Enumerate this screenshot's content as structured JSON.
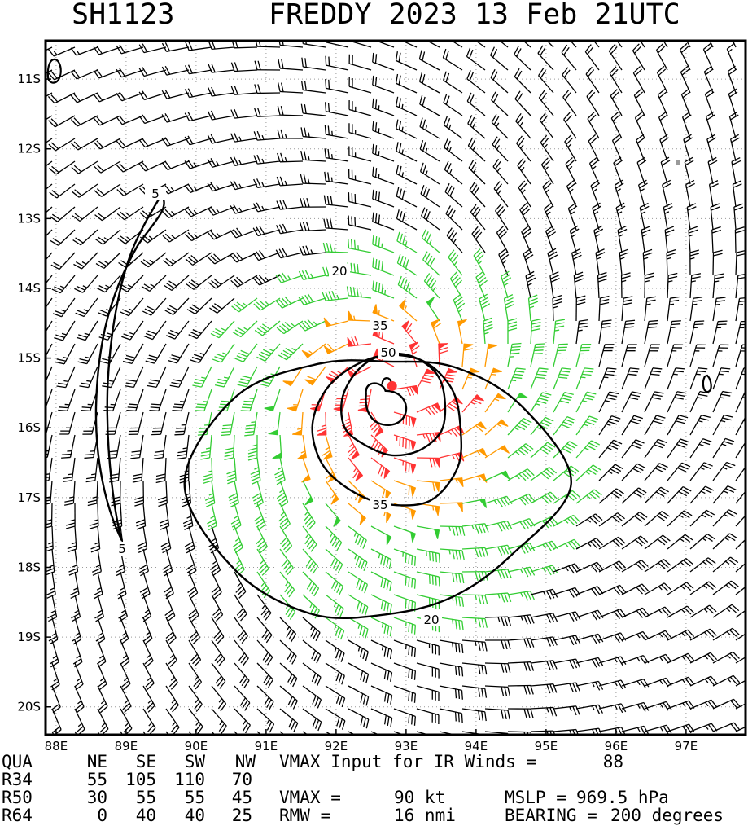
{
  "title": {
    "storm_id": "SH1123",
    "storm_info": "FREDDY 2023 13 Feb 21UTC"
  },
  "chart_data": {
    "type": "wind-barb-map",
    "xlabel": "",
    "ylabel": "",
    "x_ticks": [
      88,
      89,
      90,
      91,
      92,
      93,
      94,
      95,
      96,
      97
    ],
    "x_tick_labels": [
      "88E",
      "89E",
      "90E",
      "91E",
      "92E",
      "93E",
      "94E",
      "95E",
      "96E",
      "97E"
    ],
    "y_ticks": [
      -11,
      -12,
      -13,
      -14,
      -15,
      -16,
      -17,
      -18,
      -19,
      -20
    ],
    "y_tick_labels": [
      "11S",
      "12S",
      "13S",
      "14S",
      "15S",
      "16S",
      "17S",
      "18S",
      "19S",
      "20S"
    ],
    "xlim": [
      87.85,
      97.85
    ],
    "ylim": [
      -20.4,
      -10.45
    ],
    "grid": true,
    "center": {
      "lon": 92.8,
      "lat": -15.4
    },
    "storm_center_color": "#ff3333",
    "barb_colors": {
      "below_34": "#000000",
      "r34": "#33cc33",
      "r50": "#ff9900",
      "r64": "#ff3333"
    },
    "contour_levels": [
      5,
      20,
      35,
      50
    ],
    "contour_labels": [
      "5",
      "5",
      "20",
      "20",
      "35",
      "35",
      "50"
    ],
    "vmax_kt": 90
  },
  "footer": {
    "header_row": [
      "QUA",
      "NE",
      "SE",
      "SW",
      "NW"
    ],
    "r34_row": [
      "R34",
      "55",
      "105",
      "110",
      "70"
    ],
    "r50_row": [
      "R50",
      "30",
      "55",
      "55",
      "45"
    ],
    "r64_row": [
      "R64",
      "0",
      "40",
      "40",
      "25"
    ],
    "vmax_input_label": "VMAX Input for IR Winds =",
    "vmax_input_value": "88",
    "vmax_label": "VMAX =",
    "vmax_value": "90 kt",
    "mslp_label": "MSLP =",
    "mslp_value": "969.5 hPa",
    "rmw_label": "RMW =",
    "rmw_value": "16 nmi",
    "bearing_label": "BEARING =",
    "bearing_value": "200 degrees"
  }
}
